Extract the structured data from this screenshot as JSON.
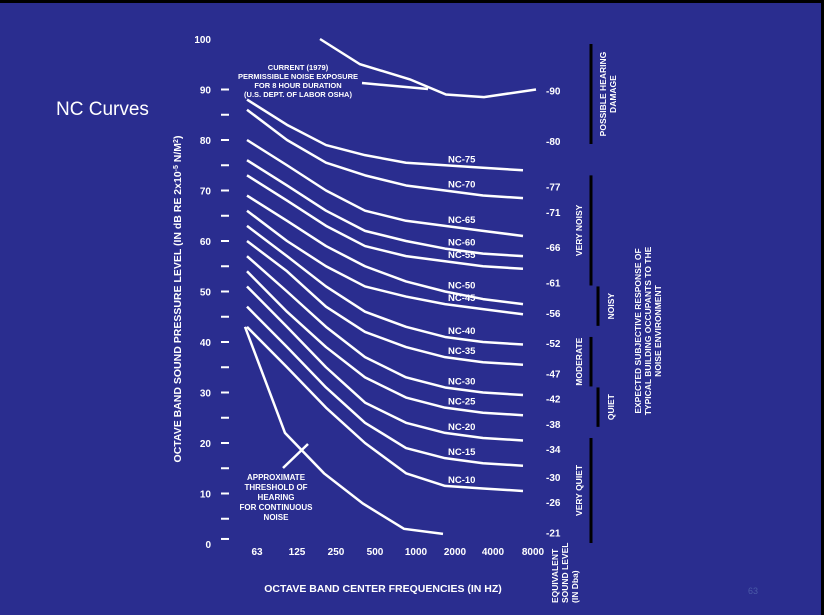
{
  "page": {
    "title": "NC Curves",
    "footer_number": "63",
    "footer_mark": ""
  },
  "colors": {
    "background": "#2a2d8f",
    "foreground": "#ffffff"
  },
  "chart_data": {
    "type": "line",
    "title": "NC Curves",
    "ylabel": "OCTAVE BAND SOUND PRESSURE LEVEL (IN dB RE 2x10",
    "ylabel_exp": "-5",
    "ylabel_tail": " N/M",
    "ylabel_sq": "2",
    "ylabel_close": ")",
    "xlabel": "OCTAVE BAND CENTER FREQUENCIES (IN HZ)",
    "ylim": [
      0,
      100
    ],
    "yticks": [
      "0",
      "10",
      "20",
      "30",
      "40",
      "50",
      "60",
      "70",
      "80",
      "90",
      "100"
    ],
    "categories": [
      "63",
      "125",
      "250",
      "500",
      "1000",
      "2000",
      "4000",
      "8000"
    ],
    "series": [
      {
        "name": "NC-75",
        "values": [
          88,
          83,
          79,
          77,
          75.5,
          75,
          74.5,
          74
        ]
      },
      {
        "name": "NC-70",
        "values": [
          86,
          80,
          75.5,
          73,
          71,
          70,
          69,
          68.5
        ]
      },
      {
        "name": "NC-65",
        "values": [
          80,
          75,
          70,
          66,
          64,
          63,
          62,
          61
        ]
      },
      {
        "name": "NC-60",
        "values": [
          76,
          71,
          66,
          62,
          60,
          58.5,
          57.5,
          57
        ]
      },
      {
        "name": "NC-55",
        "values": [
          73,
          68,
          63,
          59,
          57,
          56,
          55,
          54.5
        ]
      },
      {
        "name": "NC-50",
        "values": [
          69,
          64,
          59,
          55,
          52,
          50,
          48.5,
          47.5
        ]
      },
      {
        "name": "NC-45",
        "values": [
          66,
          60,
          55,
          51,
          49,
          47.5,
          46.5,
          45.5
        ]
      },
      {
        "name": "NC-40",
        "values": [
          63,
          57,
          51,
          46,
          43,
          41,
          40,
          39.5
        ]
      },
      {
        "name": "NC-35",
        "values": [
          60,
          54,
          47,
          42,
          39,
          37,
          36,
          35.5
        ]
      },
      {
        "name": "NC-30",
        "values": [
          57,
          50,
          43,
          37,
          33,
          31,
          30,
          29.5
        ]
      },
      {
        "name": "NC-25",
        "values": [
          54,
          46,
          39,
          33,
          29,
          27,
          26,
          25.5
        ]
      },
      {
        "name": "NC-20",
        "values": [
          51,
          43,
          35,
          28,
          24,
          22,
          21,
          20.5
        ]
      },
      {
        "name": "NC-15",
        "values": [
          47,
          39,
          31,
          24,
          19,
          17,
          16,
          15.5
        ]
      },
      {
        "name": "NC-10",
        "values": [
          43,
          35,
          27,
          20,
          14,
          11.5,
          11,
          10.5
        ]
      }
    ],
    "threshold": {
      "label": "APPROXIMATE THRESHOLD OF HEARING FOR CONTINUOUS NOISE",
      "label_lines": [
        "APPROXIMATE",
        "THRESHOLD OF",
        "HEARING",
        "FOR CONTINUOUS",
        "NOISE"
      ],
      "points": [
        [
          63,
          43
        ],
        [
          125,
          22
        ],
        [
          250,
          14
        ],
        [
          500,
          8
        ],
        [
          1000,
          3
        ],
        [
          2000,
          2
        ]
      ]
    },
    "osha": {
      "label_lines": [
        "CURRENT (1979)",
        "PERMISSIBLE NOISE EXPOSURE",
        "FOR 8 HOUR DURATION",
        "(U.S. DEPT. OF LABOR OSHA)"
      ],
      "points": [
        [
          250,
          100
        ],
        [
          500,
          95
        ],
        [
          1000,
          92
        ],
        [
          2000,
          89
        ],
        [
          4000,
          88.5
        ],
        [
          8000,
          90
        ]
      ]
    },
    "equivalent_levels": [
      "-90",
      "-80",
      "-77",
      "-71",
      "-66",
      "-61",
      "-56",
      "-52",
      "-47",
      "-42",
      "-38",
      "-34",
      "-30",
      "-26",
      "-21"
    ],
    "equivalent_label_lines": [
      "EQUIVALENT",
      "SOUND LEVEL",
      "(IN Dba)"
    ],
    "responses": [
      {
        "label_lines": [
          "POSSIBLE HEARING",
          "DAMAGE"
        ],
        "range": [
          79,
          99
        ]
      },
      {
        "label_lines": [
          "VERY NOISY"
        ],
        "range": [
          51,
          73
        ]
      },
      {
        "label_lines": [
          "NOISY"
        ],
        "range": [
          43,
          51
        ]
      },
      {
        "label_lines": [
          "MODERATE"
        ],
        "range": [
          31,
          41
        ]
      },
      {
        "label_lines": [
          "QUIET"
        ],
        "range": [
          23,
          31
        ]
      },
      {
        "label_lines": [
          "VERY QUIET"
        ],
        "range": [
          0,
          21
        ]
      }
    ],
    "response_title_lines": [
      "EXPECTED SUBJECTIVE RESPONSE OF",
      "TYPICAL BUILDING OCCUPANTS TO THE",
      "NOISE ENVIRONMENT"
    ]
  }
}
